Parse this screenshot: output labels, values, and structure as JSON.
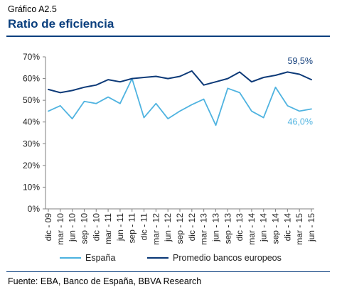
{
  "header": {
    "figure_label": "Gráfico A2.5",
    "title": "Ratio de eficiencia"
  },
  "source": "Fuente: EBA, Banco de España, BBVA Research",
  "colors": {
    "espana": "#4fb3e0",
    "promedio": "#0d3a78",
    "axis": "#7f7f7f",
    "title": "#0a3f7e"
  },
  "chart_data": {
    "type": "line",
    "title": "",
    "xlabel": "",
    "ylabel": "",
    "ylim": [
      0,
      70
    ],
    "y_ticks": [
      "0%",
      "10%",
      "20%",
      "30%",
      "40%",
      "50%",
      "60%",
      "70%"
    ],
    "y_tick_values": [
      0,
      10,
      20,
      30,
      40,
      50,
      60,
      70
    ],
    "grid": false,
    "legend_position": "bottom",
    "x": [
      "dic - 09",
      "mar - 10",
      "jun - 10",
      "sep - 10",
      "dic - 10",
      "mar - 11",
      "jun - 11",
      "sep - 11",
      "dic - 11",
      "mar - 12",
      "jun - 12",
      "sep - 12",
      "dic - 12",
      "mar - 13",
      "jun - 13",
      "sep - 13",
      "dic - 13",
      "mar - 14",
      "jun - 14",
      "sep - 14",
      "dic - 14",
      "mar - 15",
      "jun - 15"
    ],
    "series": [
      {
        "name": "España",
        "end_label": "46,0%",
        "values": [
          45.0,
          47.5,
          41.5,
          49.5,
          48.5,
          51.5,
          48.5,
          60.0,
          42.0,
          48.5,
          41.5,
          45.0,
          48.0,
          50.5,
          38.5,
          55.5,
          53.5,
          45.0,
          42.0,
          56.0,
          47.5,
          45.0,
          46.0
        ]
      },
      {
        "name": "Promedio bancos europeos",
        "end_label": "59,5%",
        "values": [
          55.0,
          53.5,
          54.5,
          56.0,
          57.0,
          59.5,
          58.5,
          60.0,
          60.5,
          61.0,
          60.0,
          61.0,
          63.5,
          57.0,
          58.5,
          60.0,
          63.0,
          58.5,
          60.5,
          61.5,
          63.0,
          62.0,
          59.5
        ]
      }
    ]
  }
}
